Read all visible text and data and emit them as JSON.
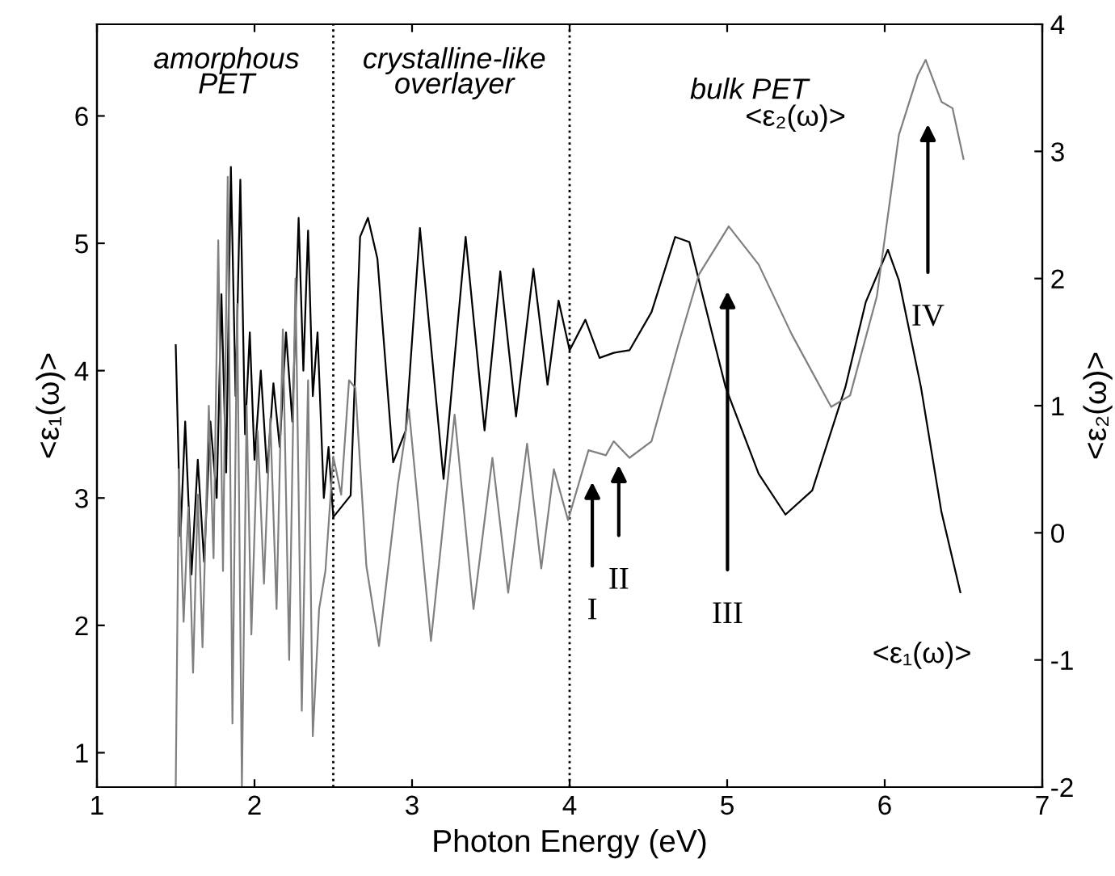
{
  "chart_data": {
    "type": "line",
    "xlabel": "Photon Energy (eV)",
    "ylabel": "<ε₁(ω)>",
    "y2label": "<ε₂(ω)>",
    "xlim": [
      1,
      7
    ],
    "xticks": [
      1,
      2,
      3,
      4,
      5,
      6,
      7
    ],
    "ylim": [
      0.73,
      6.72
    ],
    "yticks": [
      1,
      2,
      3,
      4,
      5,
      6
    ],
    "y2lim": [
      -2,
      4
    ],
    "y2ticks": [
      -2,
      -1,
      0,
      1,
      2,
      3,
      4
    ],
    "grid": false,
    "legend": false,
    "marker": "none",
    "line_style": "solid",
    "series": [
      {
        "name": "<ε₁(ω)>",
        "color": "#000000",
        "x": [
          1.5,
          1.53,
          1.56,
          1.6,
          1.64,
          1.68,
          1.72,
          1.76,
          1.79,
          1.82,
          1.85,
          1.88,
          1.91,
          1.94,
          1.97,
          2.0,
          2.04,
          2.08,
          2.12,
          2.16,
          2.2,
          2.24,
          2.28,
          2.31,
          2.34,
          2.37,
          2.4,
          2.44,
          2.47,
          2.5,
          2.61,
          2.67,
          2.72,
          2.78,
          2.88,
          2.96,
          3.05,
          3.2,
          3.34,
          3.46,
          3.56,
          3.66,
          3.77,
          3.86,
          3.93,
          4.0,
          4.1,
          4.19,
          4.28,
          4.38,
          4.52,
          4.67,
          4.76,
          4.99,
          5.2,
          5.37,
          5.54,
          5.75,
          5.88,
          6.02,
          6.09,
          6.23,
          6.36,
          6.48
        ],
        "values": [
          4.2,
          2.7,
          3.6,
          2.4,
          3.3,
          2.5,
          3.6,
          3.0,
          4.6,
          3.2,
          5.6,
          3.8,
          5.5,
          3.5,
          4.3,
          3.3,
          4.0,
          3.2,
          3.9,
          3.4,
          4.3,
          3.6,
          5.2,
          4.0,
          5.1,
          3.8,
          4.3,
          3.0,
          3.4,
          2.85,
          3.02,
          5.05,
          5.2,
          4.88,
          3.28,
          3.53,
          5.12,
          3.15,
          5.05,
          3.53,
          4.78,
          3.64,
          4.8,
          3.89,
          4.55,
          4.16,
          4.4,
          4.1,
          4.14,
          4.16,
          4.46,
          5.05,
          5.01,
          3.87,
          3.19,
          2.87,
          3.06,
          3.87,
          4.54,
          4.95,
          4.71,
          3.87,
          2.89,
          2.26
        ]
      },
      {
        "name": "<ε₂(ω)>",
        "color": "#808080",
        "axis": "y2",
        "x": [
          1.5,
          1.52,
          1.55,
          1.58,
          1.61,
          1.64,
          1.67,
          1.71,
          1.74,
          1.77,
          1.8,
          1.83,
          1.86,
          1.89,
          1.92,
          1.95,
          1.98,
          2.02,
          2.06,
          2.1,
          2.14,
          2.18,
          2.22,
          2.26,
          2.3,
          2.34,
          2.37,
          2.41,
          2.45,
          2.5,
          2.55,
          2.6,
          2.64,
          2.71,
          2.79,
          2.91,
          2.98,
          3.12,
          3.27,
          3.39,
          3.51,
          3.61,
          3.73,
          3.82,
          3.9,
          3.99,
          4.12,
          4.23,
          4.28,
          4.38,
          4.52,
          4.69,
          4.82,
          5.01,
          5.2,
          5.41,
          5.66,
          5.78,
          5.95,
          6.09,
          6.21,
          6.26,
          6.36,
          6.43,
          6.5
        ],
        "values": [
          -2.0,
          0.5,
          -0.7,
          0.2,
          -1.1,
          0.3,
          -0.9,
          1.0,
          -0.2,
          2.3,
          -0.3,
          2.8,
          -1.5,
          1.8,
          -2.0,
          1.0,
          -0.8,
          0.8,
          -0.4,
          0.9,
          -0.6,
          1.6,
          -1.0,
          2.0,
          -1.4,
          1.2,
          -1.6,
          -0.6,
          -0.3,
          0.6,
          0.3,
          1.2,
          1.14,
          -0.26,
          -0.89,
          0.38,
          0.97,
          -0.85,
          0.93,
          -0.6,
          0.59,
          -0.47,
          0.7,
          -0.28,
          0.5,
          0.1,
          0.65,
          0.61,
          0.72,
          0.59,
          0.72,
          1.48,
          2.03,
          2.41,
          2.11,
          1.56,
          0.99,
          1.08,
          1.86,
          3.13,
          3.6,
          3.72,
          3.39,
          3.34,
          2.94
        ]
      }
    ],
    "ref_lines": [
      {
        "axis": "x",
        "value": 2.5,
        "color": "#000000",
        "line_style": "dotted"
      },
      {
        "axis": "x",
        "value": 4.0,
        "color": "#000000",
        "line_style": "dotted"
      }
    ],
    "annotations": [
      "amorphous\nPET",
      "crystalline-like\noverlayer",
      "bulk PET",
      "I",
      "II",
      "III",
      "IV"
    ]
  }
}
